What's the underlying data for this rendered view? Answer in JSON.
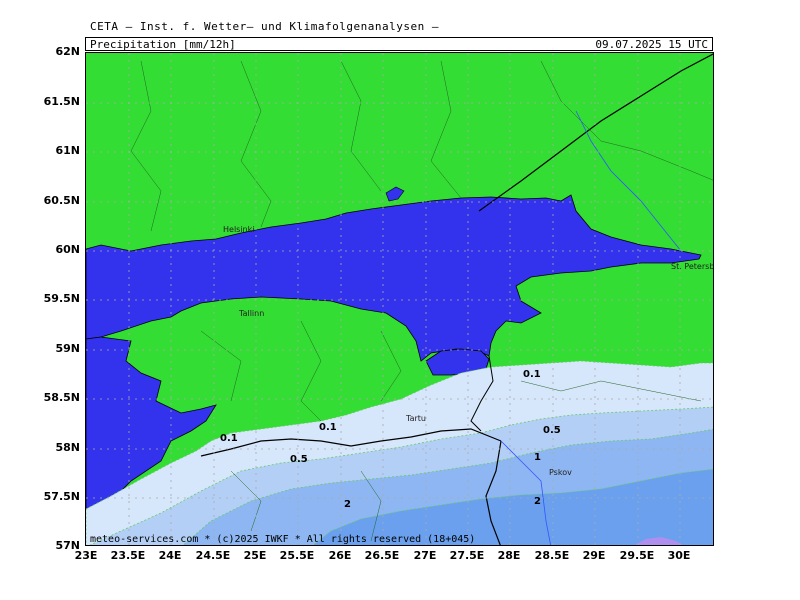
{
  "header": {
    "title": "CETA — Inst. f. Wetter— und Klimafolgenanalysen —",
    "parameter": "Precipitation [mm/12h]",
    "valid_time": "09.07.2025 15 UTC"
  },
  "footer": {
    "copyright": "meteo-services.com * (c)2025 IWKF * All rights reserved (18+045)"
  },
  "axes": {
    "lat_ticks": [
      "62N",
      "61.5N",
      "61N",
      "60.5N",
      "60N",
      "59.5N",
      "59N",
      "58.5N",
      "58N",
      "57.5N",
      "57N"
    ],
    "lon_ticks": [
      "23E",
      "23.5E",
      "24E",
      "24.5E",
      "25E",
      "25.5E",
      "26E",
      "26.5E",
      "27E",
      "27.5E",
      "28E",
      "28.5E",
      "29E",
      "29.5E",
      "30E"
    ]
  },
  "cities": {
    "helsinki": "Helsinki",
    "tallinn": "Tallinn",
    "tartu": "Tartu",
    "pskov": "Pskov",
    "st_petersburg": "St. Petersbg."
  },
  "contour_labels": {
    "c01_east": "0.1",
    "c01_mid": "0.1",
    "c01_west": "0.1",
    "c05_east": "0.5",
    "c05_west": "0.5",
    "c1": "1",
    "c2_east": "2",
    "c2_west": "2"
  },
  "colors": {
    "land_green": "#33dd33",
    "water_blue": "#3333ee",
    "precip_0_1": "#d6e6fb",
    "precip_0_5": "#b4cff6",
    "precip_1": "#8db6f2",
    "precip_2": "#6aa0ee",
    "precip_5": "#cc88ee"
  }
}
